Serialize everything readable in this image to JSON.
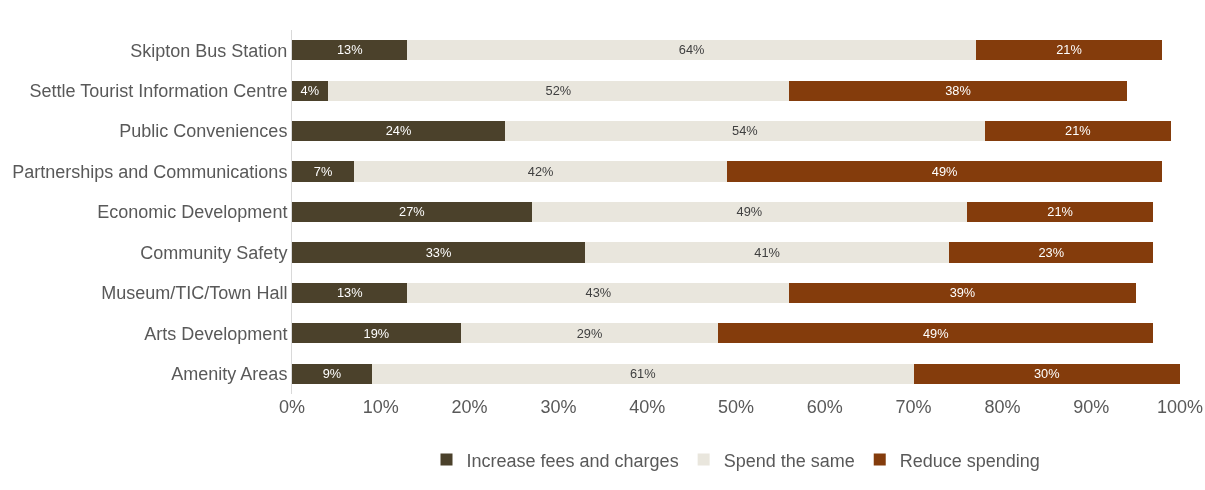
{
  "chart_data": {
    "type": "bar",
    "orientation": "horizontal",
    "stacked": true,
    "categories": [
      "Skipton Bus Station",
      "Settle Tourist Information Centre",
      "Public Conveniences",
      "Partnerships and Communications",
      "Economic Development",
      "Community Safety",
      "Museum/TIC/Town Hall",
      "Arts Development",
      "Amenity Areas"
    ],
    "series": [
      {
        "name": "Increase fees and charges",
        "color": "#4b412b",
        "values": [
          13,
          4,
          24,
          7,
          27,
          33,
          13,
          19,
          9
        ],
        "value_labels": [
          "13%",
          "4%",
          "24%",
          "7%",
          "27%",
          "33%",
          "13%",
          "19%",
          "9%"
        ]
      },
      {
        "name": "Spend the same",
        "color": "#e9e6dd",
        "values": [
          64,
          52,
          54,
          42,
          49,
          41,
          43,
          29,
          61
        ],
        "value_labels": [
          "64%",
          "52%",
          "54%",
          "42%",
          "49%",
          "41%",
          "43%",
          "29%",
          "61%"
        ]
      },
      {
        "name": "Reduce spending",
        "color": "#843c0c",
        "values": [
          21,
          38,
          21,
          49,
          21,
          23,
          39,
          49,
          30
        ],
        "value_labels": [
          "21%",
          "38%",
          "21%",
          "49%",
          "21%",
          "23%",
          "39%",
          "49%",
          "30%"
        ]
      }
    ],
    "xlim": [
      0,
      100
    ],
    "xticks": [
      {
        "value": 0,
        "label": "0%"
      },
      {
        "value": 10,
        "label": "10%"
      },
      {
        "value": 20,
        "label": "20%"
      },
      {
        "value": 30,
        "label": "30%"
      },
      {
        "value": 40,
        "label": "40%"
      },
      {
        "value": 50,
        "label": "50%"
      },
      {
        "value": 60,
        "label": "60%"
      },
      {
        "value": 70,
        "label": "70%"
      },
      {
        "value": 80,
        "label": "80%"
      },
      {
        "value": 90,
        "label": "90%"
      },
      {
        "value": 100,
        "label": "100%"
      }
    ],
    "grid": false,
    "legend": "bottom"
  }
}
